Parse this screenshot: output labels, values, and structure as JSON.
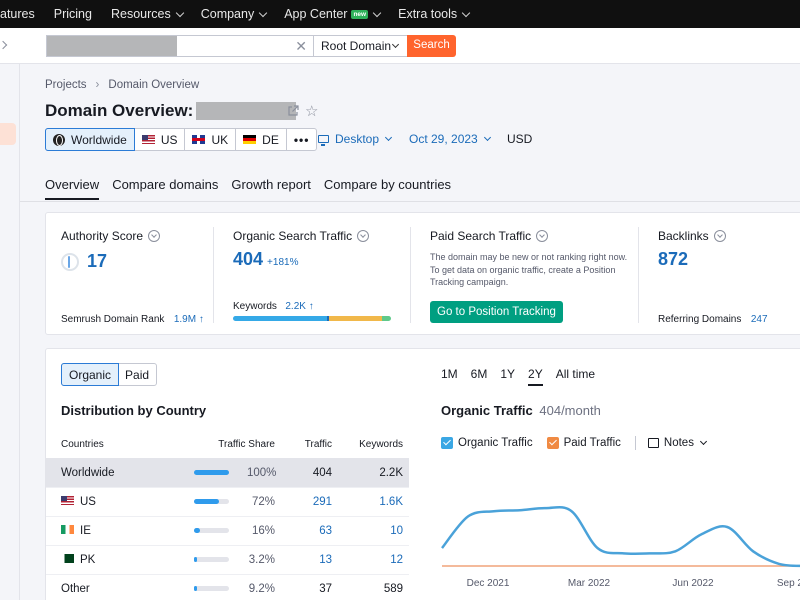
{
  "topnav": {
    "items": [
      {
        "label": "atures",
        "chevron": false
      },
      {
        "label": "Pricing",
        "chevron": false
      },
      {
        "label": "Resources",
        "chevron": true
      },
      {
        "label": "Company",
        "chevron": true
      },
      {
        "label": "App Center",
        "chevron": true,
        "badge": "new"
      },
      {
        "label": "Extra tools",
        "chevron": true
      }
    ]
  },
  "search": {
    "placeholder": "",
    "scope": "Root Domain",
    "button_label": "Search"
  },
  "breadcrumb": [
    "Projects",
    "Domain Overview"
  ],
  "page_title": "Domain Overview:",
  "databases": [
    {
      "label": "Worldwide",
      "icon": "globe-icon",
      "active": true
    },
    {
      "label": "US",
      "icon": "us-flag-icon",
      "active": false
    },
    {
      "label": "UK",
      "icon": "uk-flag-icon",
      "active": false
    },
    {
      "label": "DE",
      "icon": "de-flag-icon",
      "active": false
    }
  ],
  "more_label": "•••",
  "device": "Desktop",
  "date": "Oct 29, 2023",
  "currency": "USD",
  "main_tabs": [
    "Overview",
    "Compare domains",
    "Growth report",
    "Compare by countries"
  ],
  "summary": {
    "authority": {
      "title": "Authority Score",
      "value": "17",
      "rank_label": "Semrush Domain Rank",
      "rank_value": "1.9M ↑"
    },
    "organic": {
      "title": "Organic Search Traffic",
      "value": "404",
      "change": "+181%",
      "keywords_label": "Keywords",
      "keywords_value": "2.2K ↑",
      "keyword_bar": [
        {
          "color": "#35a9e7",
          "share": 0.595
        },
        {
          "color": "#1b6bb9",
          "share": 0.01
        },
        {
          "color": "#f1b84a",
          "share": 0.34
        },
        {
          "color": "#5fc98a",
          "share": 0.055
        }
      ]
    },
    "paid": {
      "title": "Paid Search Traffic",
      "description": "The domain may be new or not ranking right now. To get data on organic traffic, create a Position Tracking campaign.",
      "button": "Go to Position Tracking"
    },
    "backlinks": {
      "title": "Backlinks",
      "value": "872",
      "ref_label": "Referring Domains",
      "ref_value": "247"
    }
  },
  "toggle": [
    "Organic",
    "Paid"
  ],
  "distribution": {
    "title": "Distribution by Country",
    "headers": [
      "Countries",
      "Traffic Share",
      "Traffic",
      "Keywords"
    ],
    "rows": [
      {
        "country": "Worldwide",
        "flag": "",
        "share_pct": "100%",
        "share": 1.0,
        "traffic": "404",
        "keywords": "2.2K",
        "selected": true,
        "link": false
      },
      {
        "country": "US",
        "flag": "flag-us",
        "share_pct": "72%",
        "share": 0.72,
        "traffic": "291",
        "keywords": "1.6K",
        "selected": false,
        "link": true
      },
      {
        "country": "IE",
        "flag": "flag-ie",
        "share_pct": "16%",
        "share": 0.16,
        "traffic": "63",
        "keywords": "10",
        "selected": false,
        "link": true
      },
      {
        "country": "PK",
        "flag": "flag-pk",
        "share_pct": "3.2%",
        "share": 0.032,
        "traffic": "13",
        "keywords": "12",
        "selected": false,
        "link": true
      },
      {
        "country": "Other",
        "flag": "",
        "share_pct": "9.2%",
        "share": 0.092,
        "traffic": "37",
        "keywords": "589",
        "selected": false,
        "link": false
      }
    ]
  },
  "periods": [
    {
      "label": "1M",
      "active": false
    },
    {
      "label": "6M",
      "active": false
    },
    {
      "label": "1Y",
      "active": false
    },
    {
      "label": "2Y",
      "active": true
    },
    {
      "label": "All time",
      "active": false
    }
  ],
  "traffic_chart": {
    "title": "Organic Traffic",
    "subtitle": "404/month",
    "legend": [
      {
        "label": "Organic Traffic",
        "color": "#3aa7e4"
      },
      {
        "label": "Paid Traffic",
        "color": "#f08a43"
      }
    ],
    "notes_label": "Notes",
    "colors": {
      "organic": "#4aa2d9",
      "paid": "#f0a37a"
    }
  },
  "chart_data": {
    "type": "line",
    "x_tick_labels": [
      "Dec 2021",
      "Mar 2022",
      "Jun 2022",
      "Sep 2"
    ],
    "series": [
      {
        "name": "Organic Traffic",
        "values": [
          0.17,
          0.47,
          0.52,
          0.53,
          0.55,
          0.52,
          0.17,
          0.12,
          0.12,
          0.14,
          0.3,
          0.37,
          0.14,
          0.02,
          0.0
        ]
      },
      {
        "name": "Paid Traffic",
        "values": [
          0,
          0,
          0,
          0,
          0,
          0,
          0,
          0,
          0,
          0,
          0,
          0,
          0,
          0,
          0
        ]
      }
    ],
    "grid": false
  }
}
